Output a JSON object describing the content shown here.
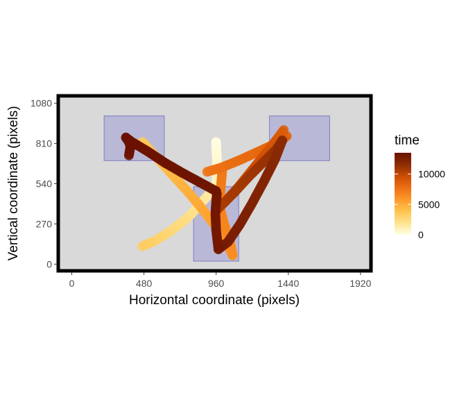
{
  "chart_data": {
    "type": "scatter",
    "title": "",
    "xlabel": "Horizontal coordinate (pixels)",
    "ylabel": "Vertical coordinate (pixels)",
    "xlim": [
      -90,
      1990
    ],
    "ylim": [
      -45,
      1130
    ],
    "xticks": [
      0,
      480,
      960,
      1440,
      1920
    ],
    "yticks": [
      0,
      270,
      540,
      810,
      1080
    ],
    "grid": false,
    "panel_background": "#d9d9d9",
    "panel_border": "#000000",
    "legend": {
      "title": "time",
      "position": "right",
      "ticks": [
        0,
        5000,
        10000
      ],
      "range": [
        0,
        13500
      ],
      "colors": [
        "#ffffe5",
        "#fee391",
        "#fec44f",
        "#fe9929",
        "#ec7014",
        "#cc4c02",
        "#8c2d04",
        "#6b1200"
      ]
    },
    "regions": [
      {
        "x0": 215,
        "x1": 615,
        "y0": 695,
        "y1": 995
      },
      {
        "x0": 1315,
        "x1": 1715,
        "y0": 695,
        "y1": 995
      },
      {
        "x0": 810,
        "x1": 1110,
        "y0": 20,
        "y1": 520
      }
    ],
    "region_color": "#9a9ad6",
    "series": [
      {
        "x": [
          960,
          962,
          965,
          968,
          964,
          960
        ],
        "y": [
          820,
          760,
          700,
          640,
          580,
          520
        ],
        "time": [
          0,
          200,
          400,
          600,
          800,
          1000
        ]
      },
      {
        "x": [
          960,
          905,
          850,
          790,
          720,
          640,
          560,
          470
        ],
        "y": [
          520,
          460,
          400,
          330,
          270,
          210,
          160,
          120
        ],
        "time": [
          1200,
          1500,
          1800,
          2100,
          2400,
          2700,
          3000,
          3300
        ]
      },
      {
        "x": [
          470,
          560,
          660,
          760,
          860,
          960,
          1040,
          1070
        ],
        "y": [
          820,
          720,
          610,
          500,
          380,
          250,
          120,
          60
        ],
        "time": [
          3500,
          3900,
          4300,
          4700,
          5100,
          5500,
          5900,
          6200
        ]
      },
      {
        "x": [
          1070,
          1050,
          1010,
          980,
          990,
          1000
        ],
        "y": [
          60,
          160,
          280,
          400,
          500,
          620
        ],
        "time": [
          6300,
          6500,
          6700,
          6900,
          7100,
          7300
        ]
      },
      {
        "x": [
          900,
          1000,
          1120,
          1250,
          1380,
          1430
        ],
        "y": [
          620,
          650,
          700,
          760,
          820,
          860
        ],
        "time": [
          7500,
          7700,
          7900,
          8100,
          8300,
          8500
        ]
      },
      {
        "x": [
          1410,
          1350,
          1270,
          1190,
          1110,
          1030,
          970
        ],
        "y": [
          900,
          820,
          720,
          620,
          520,
          430,
          370
        ],
        "time": [
          8700,
          9000,
          9300,
          9600,
          9900,
          10200,
          10500
        ]
      },
      {
        "x": [
          970,
          1080,
          1180,
          1280,
          1360,
          1400
        ],
        "y": [
          370,
          480,
          590,
          690,
          770,
          830
        ],
        "time": [
          10600,
          10800,
          11000,
          11200,
          11400,
          11600
        ]
      },
      {
        "x": [
          1400,
          1350,
          1280,
          1200,
          1120,
          1040,
          975
        ],
        "y": [
          830,
          700,
          560,
          410,
          270,
          150,
          100
        ],
        "time": [
          11700,
          11900,
          12100,
          12300,
          12500,
          12700,
          12900
        ]
      },
      {
        "x": [
          975,
          960,
          955,
          960,
          965,
          960
        ],
        "y": [
          100,
          230,
          340,
          420,
          470,
          490
        ],
        "time": [
          12950,
          13000,
          13050,
          13100,
          13150,
          13200
        ]
      },
      {
        "x": [
          960,
          850,
          740,
          620,
          500,
          400,
          360
        ],
        "y": [
          490,
          550,
          610,
          680,
          760,
          820,
          850
        ],
        "time": [
          13250,
          13300,
          13350,
          13400,
          13450,
          13500,
          13550
        ]
      },
      {
        "x": [
          360,
          380,
          390,
          385,
          380
        ],
        "y": [
          850,
          820,
          790,
          760,
          730
        ],
        "time": [
          13600,
          13650,
          13700,
          13750,
          13800
        ]
      }
    ]
  }
}
